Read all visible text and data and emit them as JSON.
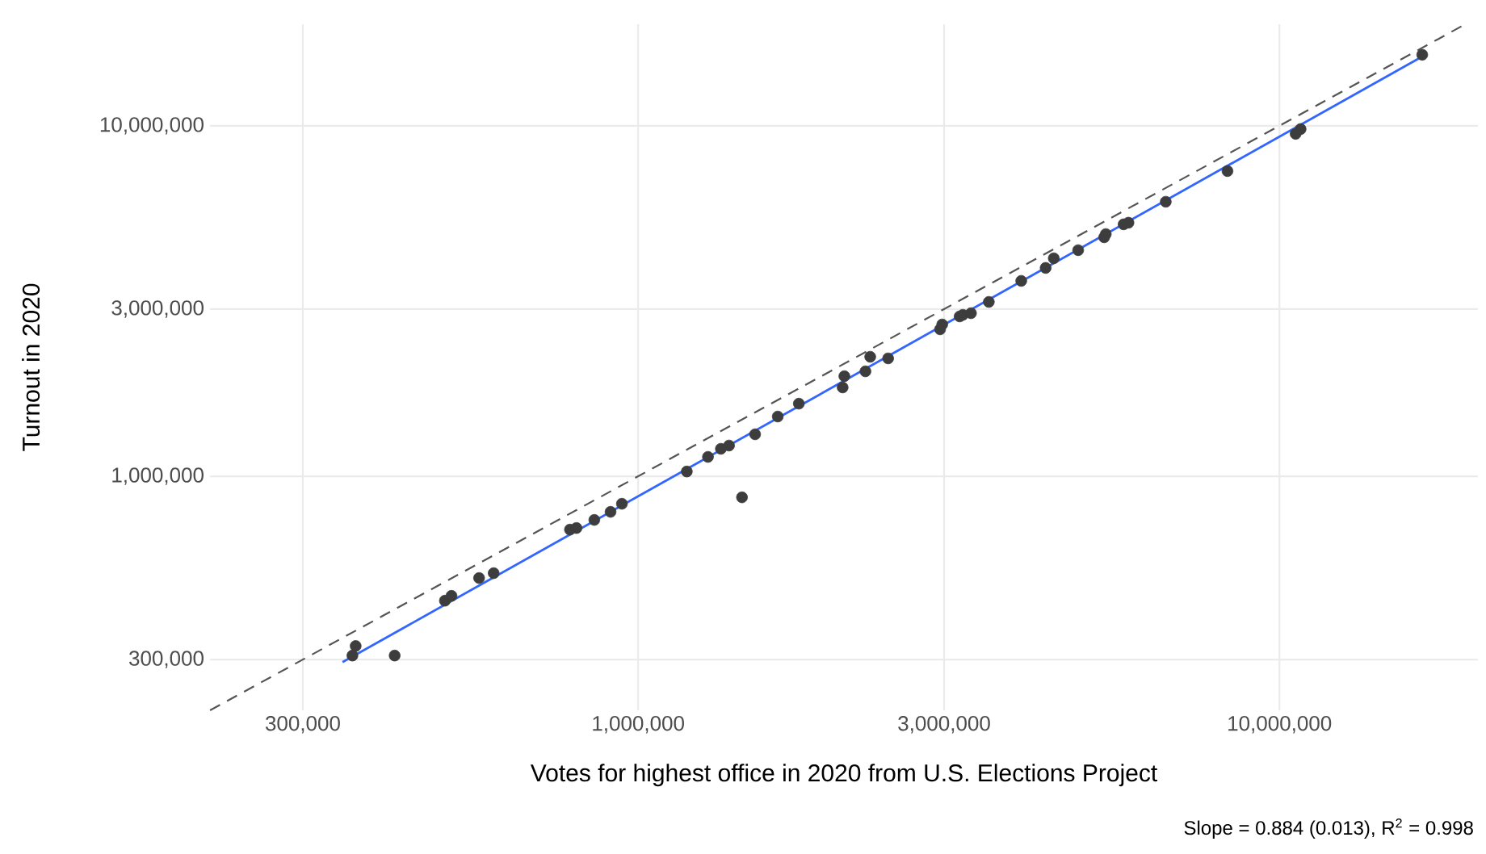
{
  "chart_data": {
    "type": "scatter",
    "xlabel": "Votes for highest office in 2020 from U.S. Elections Project",
    "ylabel": "Turnout in 2020",
    "annotations": [
      "Slope = 0.884 (0.013), R$^{2}$ = 0.998"
    ],
    "log": "xy",
    "grid": true,
    "xlim": [
      215000,
      20400000
    ],
    "ylim": [
      215000,
      19500000
    ],
    "xticks": [
      {
        "value": 300000,
        "label": "300,000"
      },
      {
        "value": 1000000,
        "label": "1,000,000"
      },
      {
        "value": 3000000,
        "label": "3,000,000"
      },
      {
        "value": 10000000,
        "label": "10,000,000"
      }
    ],
    "yticks": [
      {
        "value": 300000,
        "label": "300,000"
      },
      {
        "value": 1000000,
        "label": "1,000,000"
      },
      {
        "value": 3000000,
        "label": "3,000,000"
      },
      {
        "value": 10000000,
        "label": "10,000,000"
      }
    ],
    "series": [
      {
        "type": "line",
        "color": "#555555",
        "line_style": "dashed",
        "marker": "none",
        "x": [
          215000,
          19500000
        ],
        "values": [
          215000,
          19500000
        ]
      },
      {
        "type": "line",
        "color": "#3366ff",
        "line_style": "solid",
        "marker": "none",
        "x": [
          346000,
          16900000
        ],
        "values": [
          295000,
          15960000
        ]
      },
      {
        "type": "scatter",
        "color": "#3d3d3d",
        "marker": "circle",
        "x": [
          358500,
          362700,
          417200,
          499700,
          511600,
          564900,
          595300,
          783000,
          801400,
          854500,
          905700,
          943400,
          1191000,
          1285000,
          1346000,
          1386000,
          1452000,
          1522000,
          1651000,
          1781000,
          2084000,
          2097000,
          2262000,
          2301000,
          2454000,
          2957000,
          2980000,
          3172000,
          3209000,
          3304000,
          3523000,
          3958000,
          4320000,
          4448000,
          4855000,
          5330000,
          5361000,
          5715000,
          5816000,
          6650000,
          8299000,
          10600000,
          10790000,
          16700000
        ],
        "values": [
          308000,
          328000,
          308000,
          441700,
          456000,
          512600,
          529200,
          704600,
          712100,
          750900,
          791900,
          835000,
          1032000,
          1136000,
          1198000,
          1224000,
          871000,
          1318000,
          1481000,
          1612000,
          1793000,
          1931000,
          1993000,
          2193000,
          2170000,
          2627000,
          2712000,
          2859000,
          2889000,
          2920000,
          3145000,
          3611000,
          3932000,
          4189000,
          4418000,
          4808000,
          4911000,
          5235000,
          5291000,
          6073000,
          7430000,
          9485000,
          9790000,
          15950000
        ]
      }
    ]
  }
}
